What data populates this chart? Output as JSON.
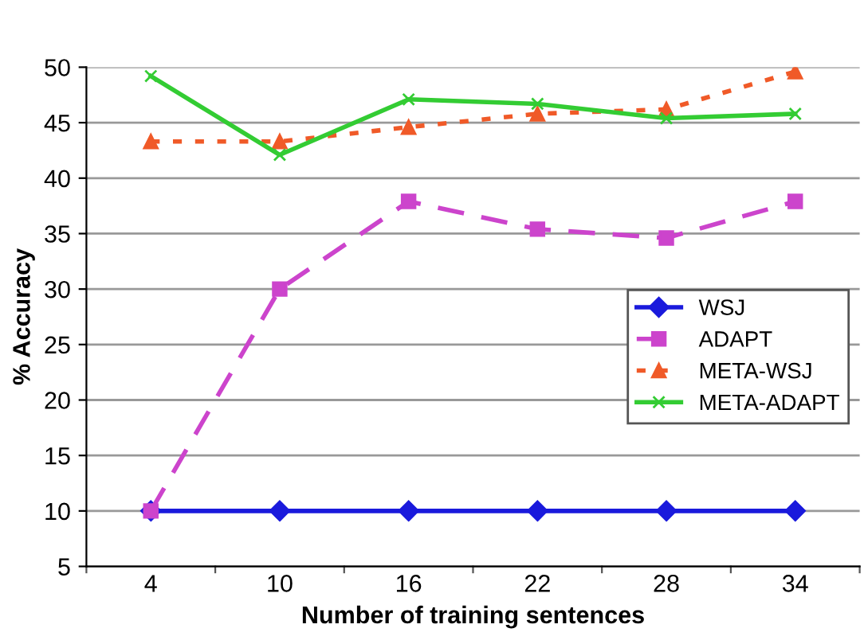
{
  "chart_data": {
    "type": "line",
    "xlabel": "Number of training sentences",
    "ylabel": "% Accuracy",
    "categories": [
      "4",
      "10",
      "16",
      "22",
      "28",
      "34"
    ],
    "series": [
      {
        "name": "WSJ",
        "color": "#1a1adc",
        "marker": "diamond",
        "line_style": "solid",
        "values": [
          10,
          10,
          10,
          10,
          10,
          10
        ]
      },
      {
        "name": "ADAPT",
        "color": "#cc44cc",
        "marker": "square",
        "line_style": "dashed",
        "values": [
          10,
          30,
          37.9,
          35.4,
          34.6,
          37.9
        ]
      },
      {
        "name": "META-WSJ",
        "color": "#f05a28",
        "marker": "triangle",
        "line_style": "dotted",
        "values": [
          43.3,
          43.3,
          44.6,
          45.8,
          46.2,
          49.6
        ]
      },
      {
        "name": "META-ADAPT",
        "color": "#33cc33",
        "marker": "cross",
        "line_style": "solid",
        "values": [
          49.2,
          42.1,
          47.1,
          46.7,
          45.4,
          45.8
        ]
      }
    ],
    "ylim": [
      5,
      50
    ],
    "yticks": [
      5,
      10,
      15,
      20,
      25,
      30,
      35,
      40,
      45,
      50
    ],
    "grid": "y",
    "legend": "right"
  }
}
